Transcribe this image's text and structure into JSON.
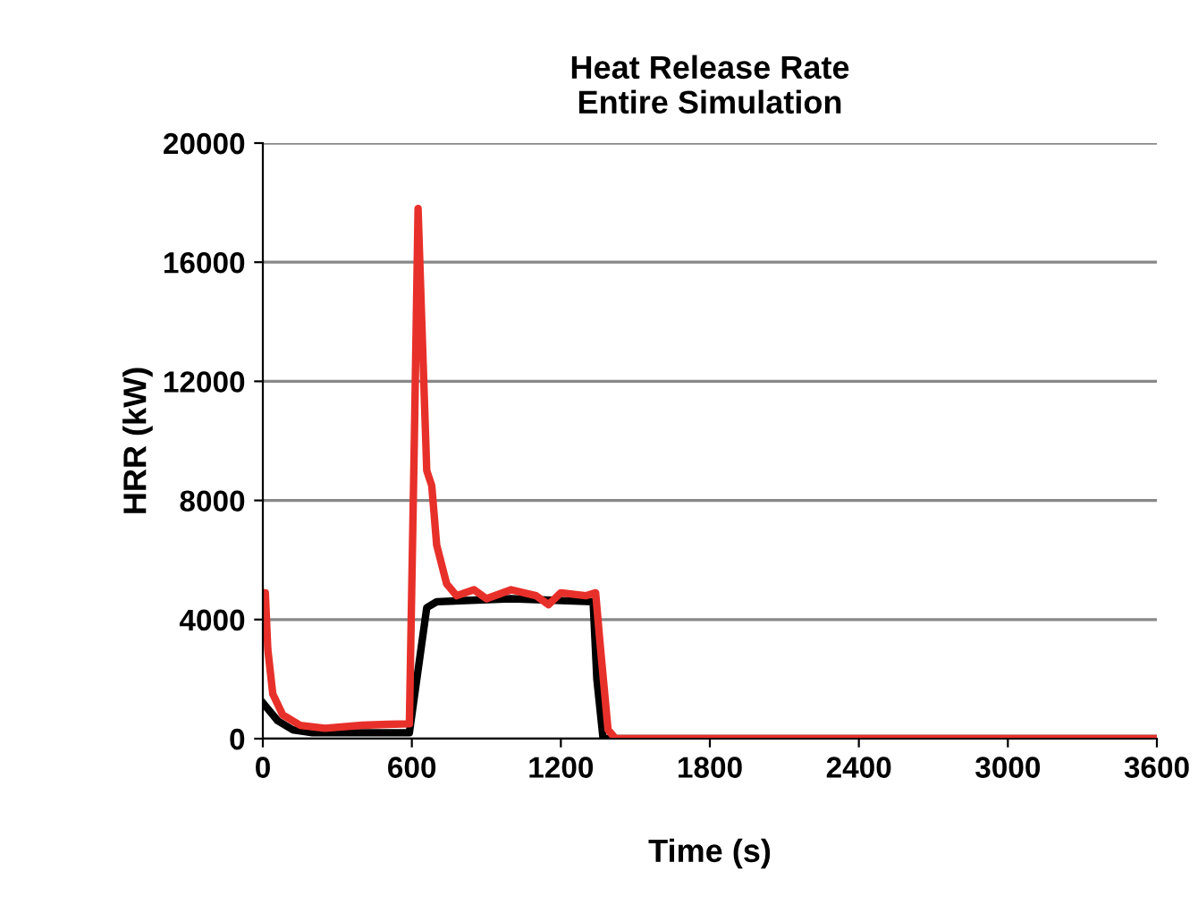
{
  "chart_data": {
    "type": "line",
    "title": "Heat Release Rate\nEntire Simulation",
    "xlabel": "Time (s)",
    "ylabel": "HRR (kW)",
    "xlim": [
      0,
      3600
    ],
    "xticks": [
      0,
      600,
      1200,
      1800,
      2400,
      3000,
      3600
    ],
    "ylim": [
      0,
      20000
    ],
    "yticks": [
      0,
      4000,
      8000,
      12000,
      16000,
      20000
    ],
    "grid": "y",
    "legend": false,
    "marker": "none",
    "line_style": "solid",
    "series": [
      {
        "color": "#000000",
        "x": [
          0,
          20,
          60,
          120,
          200,
          400,
          590,
          620,
          660,
          700,
          1000,
          1330,
          1345,
          1370,
          3600
        ],
        "values": [
          1200,
          1000,
          600,
          300,
          200,
          200,
          200,
          2000,
          4400,
          4600,
          4700,
          4600,
          2000,
          0,
          0
        ]
      },
      {
        "color": "#e8302a",
        "x": [
          0,
          10,
          20,
          40,
          80,
          150,
          250,
          400,
          500,
          590,
          610,
          625,
          640,
          660,
          680,
          700,
          740,
          780,
          850,
          900,
          1000,
          1100,
          1150,
          1200,
          1300,
          1340,
          1360,
          1390,
          1420,
          3600
        ],
        "values": [
          4900,
          4900,
          3000,
          1500,
          800,
          450,
          350,
          450,
          480,
          500,
          10000,
          17800,
          14000,
          9000,
          8500,
          6500,
          5200,
          4800,
          5000,
          4700,
          5000,
          4800,
          4500,
          4900,
          4800,
          4900,
          3000,
          300,
          0,
          0
        ]
      }
    ]
  }
}
